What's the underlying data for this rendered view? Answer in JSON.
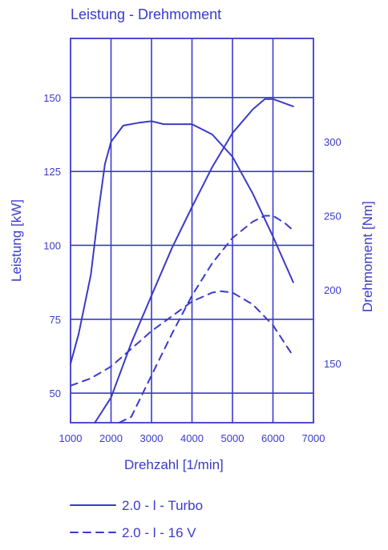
{
  "chart_data": {
    "type": "line",
    "title": "Leistung - Drehmoment",
    "xlabel": "Drehzahl [1/min]",
    "ylabel_left": "Leistung [kW]",
    "ylabel_right": "Drehmoment [Nm]",
    "x_ticks": [
      1000,
      2000,
      3000,
      4000,
      5000,
      6000,
      7000
    ],
    "y_left_ticks": [
      50,
      75,
      100,
      125,
      150
    ],
    "y_right_ticks": [
      150,
      200,
      250,
      300
    ],
    "xlim": [
      1000,
      7000
    ],
    "ylim_left": [
      40,
      170
    ],
    "ylim_right": [
      110,
      370
    ],
    "grid": true,
    "color": "#3a3acc",
    "series": [
      {
        "name": "2.0 - l - Turbo",
        "quantity": "power",
        "axis": "left",
        "style": "solid",
        "x": [
          1600,
          2000,
          2500,
          3000,
          3500,
          4000,
          4500,
          5000,
          5500,
          5800,
          6000,
          6300,
          6500
        ],
        "y": [
          30,
          48.5,
          67,
          83,
          99,
          113,
          126.5,
          138,
          146,
          149.5,
          149.5,
          148,
          147
        ]
      },
      {
        "name": "2.0 - l - Turbo",
        "quantity": "torque",
        "axis": "right",
        "style": "solid",
        "x": [
          1000,
          1200,
          1500,
          1700,
          1850,
          2000,
          2300,
          2700,
          3000,
          3300,
          3600,
          4000,
          4500,
          5000,
          5500,
          6000,
          6500
        ],
        "y": [
          150,
          170,
          210,
          255,
          285,
          300,
          311,
          313,
          314,
          312,
          312,
          312,
          305,
          290,
          265,
          236,
          205
        ]
      },
      {
        "name": "2.0 - l - 16 V",
        "quantity": "power",
        "axis": "left",
        "style": "dashed",
        "x": [
          2200,
          2500,
          3000,
          3500,
          4000,
          4500,
          5000,
          5500,
          5800,
          6000,
          6300,
          6500
        ],
        "y": [
          35,
          42,
          56,
          70,
          83,
          94,
          102.5,
          108,
          110,
          110,
          107.5,
          105
        ]
      },
      {
        "name": "2.0 - l - 16 V",
        "quantity": "torque",
        "axis": "right",
        "style": "dashed",
        "x": [
          1000,
          1500,
          2000,
          2500,
          3000,
          3500,
          4000,
          4500,
          4700,
          5000,
          5500,
          6000,
          6500
        ],
        "y": [
          135,
          140,
          148,
          160,
          172,
          182,
          192,
          198,
          199,
          198,
          190,
          176,
          155
        ]
      }
    ],
    "legend": [
      {
        "label": "2.0 - l - Turbo",
        "style": "solid"
      },
      {
        "label": "2.0 - l - 16 V",
        "style": "dashed"
      }
    ],
    "legend_position": "bottom"
  }
}
